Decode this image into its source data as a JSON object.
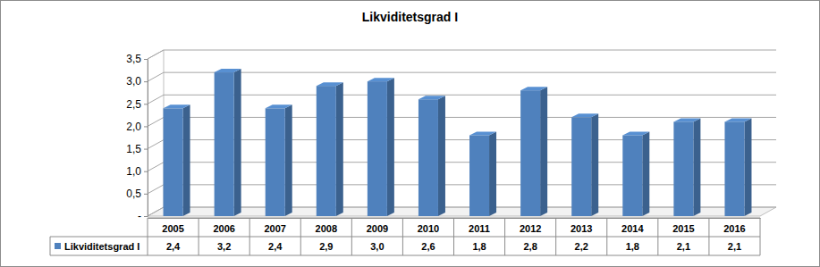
{
  "chart_data": {
    "type": "bar",
    "title": "Likviditetsgrad I",
    "categories": [
      "2005",
      "2006",
      "2007",
      "2008",
      "2009",
      "2010",
      "2011",
      "2012",
      "2013",
      "2014",
      "2015",
      "2016"
    ],
    "series": [
      {
        "name": "Likviditetsgrad I",
        "color": "#4f81bd",
        "values": [
          2.4,
          3.2,
          2.4,
          2.9,
          3.0,
          2.6,
          1.8,
          2.8,
          2.2,
          1.8,
          2.1,
          2.1
        ],
        "value_labels": [
          "2,4",
          "3,2",
          "2,4",
          "2,9",
          "3,0",
          "2,6",
          "1,8",
          "2,8",
          "2,2",
          "1,8",
          "2,1",
          "2,1"
        ]
      }
    ],
    "ylim": [
      0,
      3.5
    ],
    "yticks": [
      {
        "value": 0,
        "label": "-"
      },
      {
        "value": 0.5,
        "label": "0,5"
      },
      {
        "value": 1.0,
        "label": "1,0"
      },
      {
        "value": 1.5,
        "label": "1,5"
      },
      {
        "value": 2.0,
        "label": "2,0"
      },
      {
        "value": 2.5,
        "label": "2,5"
      },
      {
        "value": 3.0,
        "label": "3,0"
      },
      {
        "value": 3.5,
        "label": "3,5"
      }
    ],
    "grid": true,
    "data_labels": true
  }
}
